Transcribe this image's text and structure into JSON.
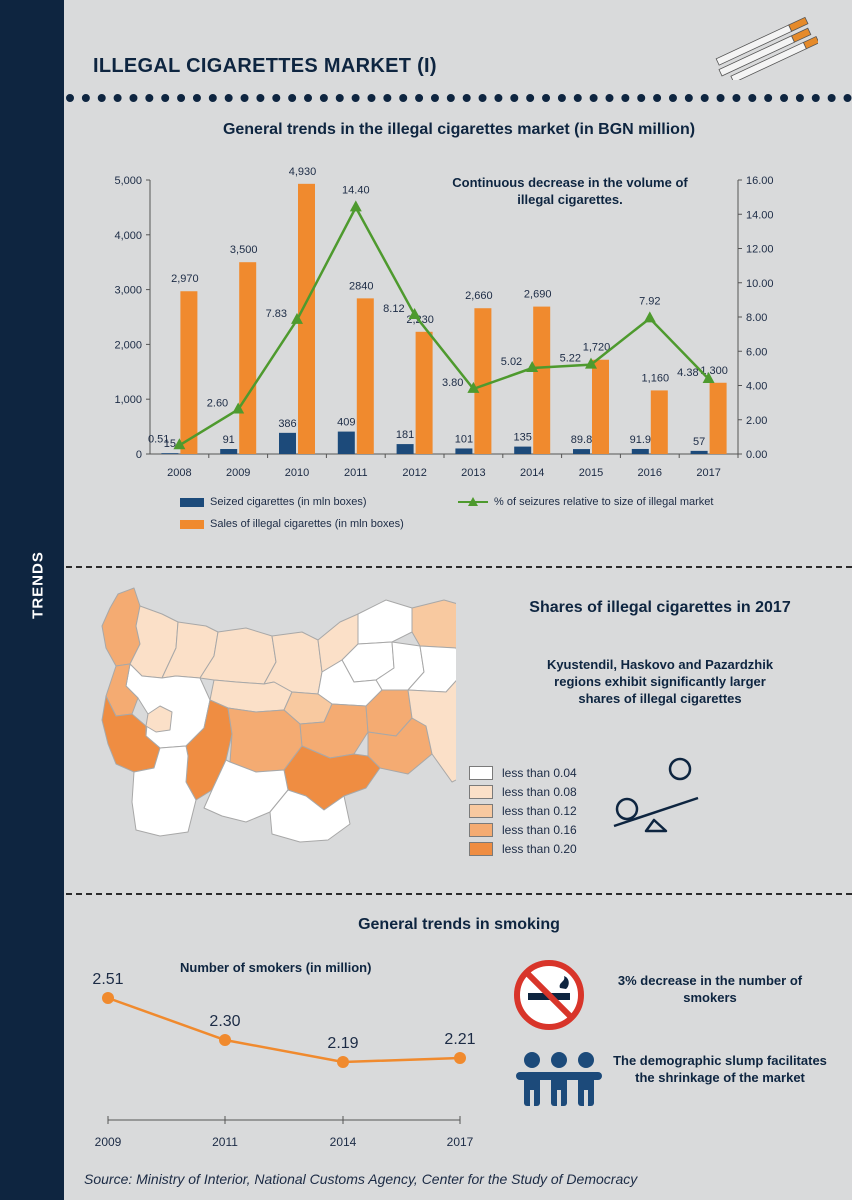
{
  "sidebar": {
    "label": "TRENDS"
  },
  "header": {
    "title": "ILLEGAL CIGARETTES MARKET (I)"
  },
  "colors": {
    "navy": "#0e2540",
    "bar_seized": "#1c4a7a",
    "bar_sales": "#f08a2e",
    "line": "#4e9a2e",
    "background": "#d9dadb"
  },
  "section1": {
    "title": "General trends in the illegal cigarettes market (in BGN million)",
    "annotation": "Continuous decrease in the volume of illegal cigarettes.",
    "legend": {
      "seized": "Seized cigarettes (in mln boxes)",
      "sales": "Sales of illegal cigarettes (in mln boxes)",
      "percent": "% of seizures relative to size of illegal market"
    }
  },
  "chart_data": [
    {
      "type": "bar",
      "title": "General trends in the illegal cigarettes market (in BGN million)",
      "categories": [
        "2008",
        "2009",
        "2010",
        "2011",
        "2012",
        "2013",
        "2014",
        "2015",
        "2016",
        "2017"
      ],
      "series": [
        {
          "name": "Seized cigarettes (in mln boxes)",
          "axis": "left",
          "values": [
            15,
            91,
            386,
            409,
            181,
            101,
            135,
            89.8,
            91.9,
            57
          ],
          "labels": [
            "15",
            "91",
            "386",
            "409",
            "181",
            "101",
            "135",
            "89.8",
            "91.9",
            "57"
          ]
        },
        {
          "name": "Sales of illegal cigarettes (in mln boxes)",
          "axis": "left",
          "values": [
            2970,
            3500,
            4930,
            2840,
            2230,
            2660,
            2690,
            1720,
            1160,
            1300
          ],
          "labels": [
            "2,970",
            "3,500",
            "4,930",
            "2840",
            "2,230",
            "2,660",
            "2,690",
            "1,720",
            "1,160",
            "1,300"
          ]
        },
        {
          "name": "% of seizures relative to size of illegal market",
          "axis": "right",
          "type": "line",
          "values": [
            0.51,
            2.6,
            7.83,
            14.4,
            8.12,
            3.8,
            5.02,
            5.22,
            7.92,
            4.38
          ],
          "labels": [
            "0.51",
            "2.60",
            "7.83",
            "14.40",
            "8.12",
            "3.80",
            "5.02",
            "5.22",
            "7.92",
            "4.38"
          ]
        }
      ],
      "ylim": [
        0,
        5000
      ],
      "y_ticks": [
        "0",
        "1,000",
        "2,000",
        "3,000",
        "4,000",
        "5,000"
      ],
      "y2lim": [
        0,
        16
      ],
      "y2_ticks": [
        "0.00",
        "2.00",
        "4.00",
        "6.00",
        "8.00",
        "10.00",
        "12.00",
        "14.00",
        "16.00"
      ],
      "legend_position": "bottom"
    },
    {
      "type": "line",
      "title": "Number of smokers (in million)",
      "x": [
        "2009",
        "2011",
        "2014",
        "2017"
      ],
      "values": [
        2.51,
        2.3,
        2.19,
        2.21
      ],
      "labels": [
        "2.51",
        "2.30",
        "2.19",
        "2.21"
      ]
    }
  ],
  "section2": {
    "title": "Shares of illegal cigarettes in 2017",
    "note": "Kyustendil, Haskovo and Pazardzhik regions exhibit significantly larger shares of illegal cigarettes",
    "legend": [
      {
        "label": "less than 0.04",
        "color": "#ffffff"
      },
      {
        "label": "less than 0.08",
        "color": "#fbe0c8"
      },
      {
        "label": "less than 0.12",
        "color": "#f8c9a0"
      },
      {
        "label": "less than 0.16",
        "color": "#f4ab72"
      },
      {
        "label": "less than 0.20",
        "color": "#ef8d42"
      }
    ]
  },
  "section3": {
    "title": "General trends in smoking",
    "chart_title": "Number of smokers (in million)",
    "fact1": "3% decrease in the number of smokers",
    "fact2": "The demographic slump facilitates the shrinkage of the market"
  },
  "source": "Source: Ministry of Interior, National Customs Agency, Center for the Study of Democracy"
}
